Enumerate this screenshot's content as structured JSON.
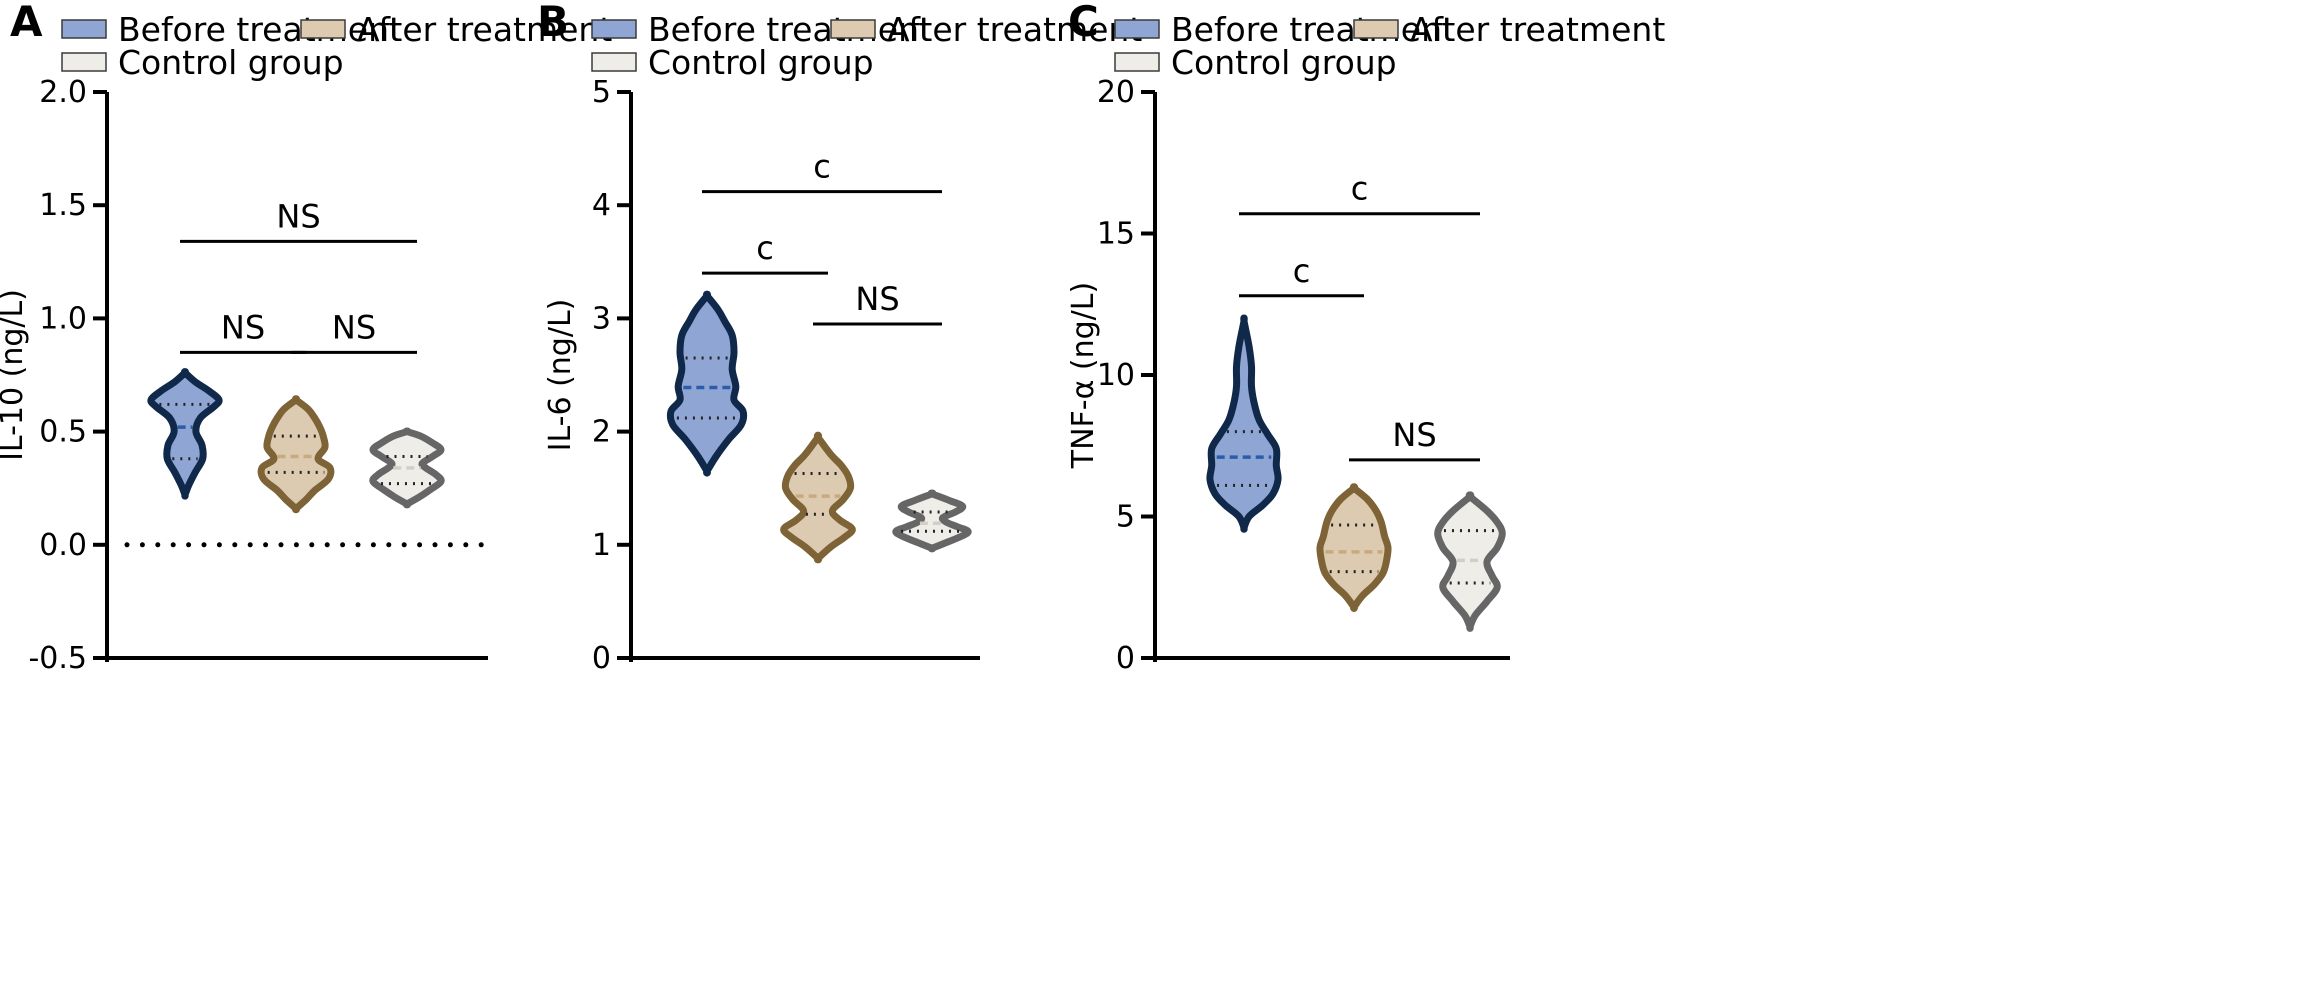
{
  "legend": {
    "before_label": "Before treatment",
    "after_label": "After treatment",
    "control_label": "Control group"
  },
  "colors": {
    "before_fill": "#8fa6d4",
    "before_stroke": "#10284a",
    "before_median": "#2d5cab",
    "after_fill": "#dccbb0",
    "after_stroke": "#7d6336",
    "after_median": "#c8aa7e",
    "control_fill": "#efede8",
    "control_stroke": "#666666",
    "control_median": "#d2cfc8"
  },
  "chart_data": [
    {
      "type": "violin",
      "panel": "A",
      "ylabel": "IL-10 (ng/L)",
      "ylim": [
        -0.5,
        2.0
      ],
      "yticks": [
        -0.5,
        0.0,
        0.5,
        1.0,
        1.5,
        2.0
      ],
      "ytick_labels": [
        "-0.5",
        "0.0",
        "0.5",
        "1.0",
        "1.5",
        "2.0"
      ],
      "reference_line": 0.0,
      "series": [
        {
          "name": "Before treatment",
          "min": 0.22,
          "q1": 0.38,
          "median": 0.52,
          "q3": 0.62,
          "max": 0.76,
          "profile": [
            [
              0.22,
              0.0
            ],
            [
              0.26,
              0.1
            ],
            [
              0.32,
              0.3
            ],
            [
              0.38,
              0.52
            ],
            [
              0.44,
              0.5
            ],
            [
              0.5,
              0.32
            ],
            [
              0.56,
              0.45
            ],
            [
              0.61,
              0.85
            ],
            [
              0.64,
              1.0
            ],
            [
              0.68,
              0.7
            ],
            [
              0.72,
              0.3
            ],
            [
              0.76,
              0.0
            ]
          ]
        },
        {
          "name": "After treatment",
          "min": 0.16,
          "q1": 0.32,
          "median": 0.39,
          "q3": 0.48,
          "max": 0.64,
          "profile": [
            [
              0.16,
              0.0
            ],
            [
              0.2,
              0.3
            ],
            [
              0.24,
              0.55
            ],
            [
              0.29,
              0.95
            ],
            [
              0.34,
              1.0
            ],
            [
              0.38,
              0.65
            ],
            [
              0.43,
              0.85
            ],
            [
              0.48,
              0.8
            ],
            [
              0.52,
              0.7
            ],
            [
              0.56,
              0.55
            ],
            [
              0.6,
              0.35
            ],
            [
              0.64,
              0.0
            ]
          ]
        },
        {
          "name": "Control group",
          "min": 0.18,
          "q1": 0.27,
          "median": 0.34,
          "q3": 0.39,
          "max": 0.5,
          "profile": [
            [
              0.18,
              0.0
            ],
            [
              0.21,
              0.35
            ],
            [
              0.24,
              0.65
            ],
            [
              0.28,
              1.0
            ],
            [
              0.31,
              0.85
            ],
            [
              0.34,
              0.55
            ],
            [
              0.36,
              0.45
            ],
            [
              0.39,
              0.75
            ],
            [
              0.42,
              1.0
            ],
            [
              0.45,
              0.75
            ],
            [
              0.48,
              0.4
            ],
            [
              0.5,
              0.0
            ]
          ]
        }
      ],
      "comparisons": [
        {
          "label": "NS",
          "from": 0,
          "to": 1,
          "y": 0.85
        },
        {
          "label": "NS",
          "from": 1,
          "to": 2,
          "y": 0.85
        },
        {
          "label": "NS",
          "from": 0,
          "to": 2,
          "y": 1.34
        }
      ]
    },
    {
      "type": "violin",
      "panel": "B",
      "ylabel": "IL-6 (ng/L)",
      "ylim": [
        0,
        5
      ],
      "yticks": [
        0,
        1,
        2,
        3,
        4,
        5
      ],
      "ytick_labels": [
        "0",
        "1",
        "2",
        "3",
        "4",
        "5"
      ],
      "series": [
        {
          "name": "Before treatment",
          "min": 1.65,
          "q1": 2.12,
          "median": 2.39,
          "q3": 2.65,
          "max": 3.2,
          "profile": [
            [
              1.65,
              0.0
            ],
            [
              1.78,
              0.25
            ],
            [
              1.93,
              0.6
            ],
            [
              2.06,
              0.95
            ],
            [
              2.18,
              1.0
            ],
            [
              2.28,
              0.75
            ],
            [
              2.4,
              0.8
            ],
            [
              2.55,
              0.7
            ],
            [
              2.7,
              0.75
            ],
            [
              2.85,
              0.7
            ],
            [
              2.97,
              0.5
            ],
            [
              3.08,
              0.3
            ],
            [
              3.2,
              0.0
            ]
          ]
        },
        {
          "name": "After treatment",
          "min": 0.88,
          "q1": 1.27,
          "median": 1.43,
          "q3": 1.63,
          "max": 1.95,
          "profile": [
            [
              0.88,
              0.0
            ],
            [
              0.98,
              0.35
            ],
            [
              1.07,
              0.75
            ],
            [
              1.14,
              0.95
            ],
            [
              1.22,
              0.6
            ],
            [
              1.3,
              0.4
            ],
            [
              1.4,
              0.7
            ],
            [
              1.5,
              0.9
            ],
            [
              1.6,
              0.85
            ],
            [
              1.7,
              0.65
            ],
            [
              1.8,
              0.35
            ],
            [
              1.95,
              0.0
            ]
          ]
        },
        {
          "name": "Control group",
          "min": 0.97,
          "q1": 1.12,
          "median": 1.19,
          "q3": 1.29,
          "max": 1.45,
          "profile": [
            [
              0.97,
              0.0
            ],
            [
              1.02,
              0.4
            ],
            [
              1.08,
              0.85
            ],
            [
              1.12,
              1.0
            ],
            [
              1.16,
              0.7
            ],
            [
              1.2,
              0.4
            ],
            [
              1.24,
              0.3
            ],
            [
              1.29,
              0.65
            ],
            [
              1.34,
              0.85
            ],
            [
              1.39,
              0.5
            ],
            [
              1.45,
              0.0
            ]
          ]
        }
      ],
      "comparisons": [
        {
          "label": "c",
          "from": 0,
          "to": 1,
          "y": 3.4
        },
        {
          "label": "NS",
          "from": 1,
          "to": 2,
          "y": 2.95
        },
        {
          "label": "c",
          "from": 0,
          "to": 2,
          "y": 4.12
        }
      ]
    },
    {
      "type": "violin",
      "panel": "C",
      "ylabel": "TNF-α (ng/L)",
      "ylim": [
        0,
        20
      ],
      "yticks": [
        0,
        5,
        10,
        15,
        20
      ],
      "ytick_labels": [
        "0",
        "5",
        "10",
        "15",
        "20"
      ],
      "series": [
        {
          "name": "Before treatment",
          "min": 4.6,
          "q1": 6.1,
          "median": 7.1,
          "q3": 8.0,
          "max": 11.9,
          "profile": [
            [
              4.6,
              0.0
            ],
            [
              5.0,
              0.15
            ],
            [
              5.4,
              0.55
            ],
            [
              5.8,
              0.85
            ],
            [
              6.3,
              1.0
            ],
            [
              6.8,
              0.95
            ],
            [
              7.4,
              0.95
            ],
            [
              7.9,
              0.7
            ],
            [
              8.4,
              0.45
            ],
            [
              9.0,
              0.3
            ],
            [
              9.6,
              0.22
            ],
            [
              10.3,
              0.22
            ],
            [
              11.0,
              0.15
            ],
            [
              11.9,
              0.0
            ]
          ]
        },
        {
          "name": "After treatment",
          "min": 1.8,
          "q1": 3.05,
          "median": 3.75,
          "q3": 4.7,
          "max": 6.0,
          "profile": [
            [
              1.8,
              0.0
            ],
            [
              2.2,
              0.25
            ],
            [
              2.6,
              0.6
            ],
            [
              3.0,
              0.85
            ],
            [
              3.4,
              0.95
            ],
            [
              3.9,
              1.0
            ],
            [
              4.3,
              0.9
            ],
            [
              4.8,
              0.8
            ],
            [
              5.2,
              0.65
            ],
            [
              5.6,
              0.4
            ],
            [
              6.0,
              0.0
            ]
          ]
        },
        {
          "name": "Control group",
          "min": 1.1,
          "q1": 2.65,
          "median": 3.45,
          "q3": 4.5,
          "max": 5.7,
          "profile": [
            [
              1.1,
              0.0
            ],
            [
              1.5,
              0.15
            ],
            [
              2.0,
              0.5
            ],
            [
              2.5,
              0.8
            ],
            [
              2.9,
              0.65
            ],
            [
              3.4,
              0.5
            ],
            [
              3.9,
              0.8
            ],
            [
              4.4,
              0.95
            ],
            [
              4.8,
              0.8
            ],
            [
              5.2,
              0.5
            ],
            [
              5.7,
              0.0
            ]
          ]
        }
      ],
      "comparisons": [
        {
          "label": "c",
          "from": 0,
          "to": 1,
          "y": 12.8
        },
        {
          "label": "NS",
          "from": 1,
          "to": 2,
          "y": 7.0
        },
        {
          "label": "c",
          "from": 0,
          "to": 2,
          "y": 15.7
        }
      ]
    }
  ]
}
